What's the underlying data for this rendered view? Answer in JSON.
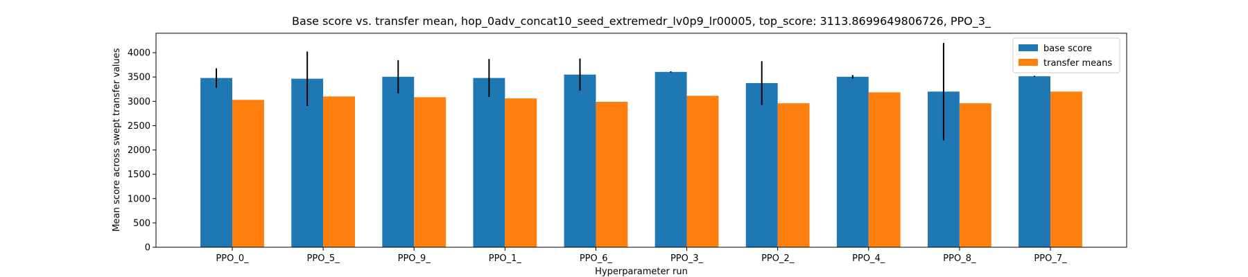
{
  "chart_data": {
    "type": "bar",
    "title": "Base score vs. transfer mean, hop_0adv_concat10_seed_extremedr_lv0p9_lr00005, top_score: 3113.8699649806726, PPO_3_",
    "xlabel": "Hyperparameter run",
    "ylabel": "Mean score across swept transfer values",
    "ylim": [
      0,
      4400
    ],
    "yticks": [
      0,
      500,
      1000,
      1500,
      2000,
      2500,
      3000,
      3500,
      4000
    ],
    "categories": [
      "PPO_0_",
      "PPO_5_",
      "PPO_9_",
      "PPO_1_",
      "PPO_6_",
      "PPO_3_",
      "PPO_2_",
      "PPO_4_",
      "PPO_8_",
      "PPO_7_"
    ],
    "series": [
      {
        "name": "base score",
        "color": "#1f77b4",
        "values": [
          3480,
          3465,
          3505,
          3480,
          3550,
          3605,
          3375,
          3505,
          3200,
          3515
        ],
        "error": [
          200,
          560,
          340,
          390,
          330,
          12,
          450,
          35,
          1000,
          12
        ]
      },
      {
        "name": "transfer means",
        "color": "#ff7f0e",
        "values": [
          3030,
          3100,
          3085,
          3060,
          2990,
          3114,
          2960,
          3185,
          2960,
          3200
        ]
      }
    ],
    "legend_position": "top-right",
    "grid": false
  }
}
